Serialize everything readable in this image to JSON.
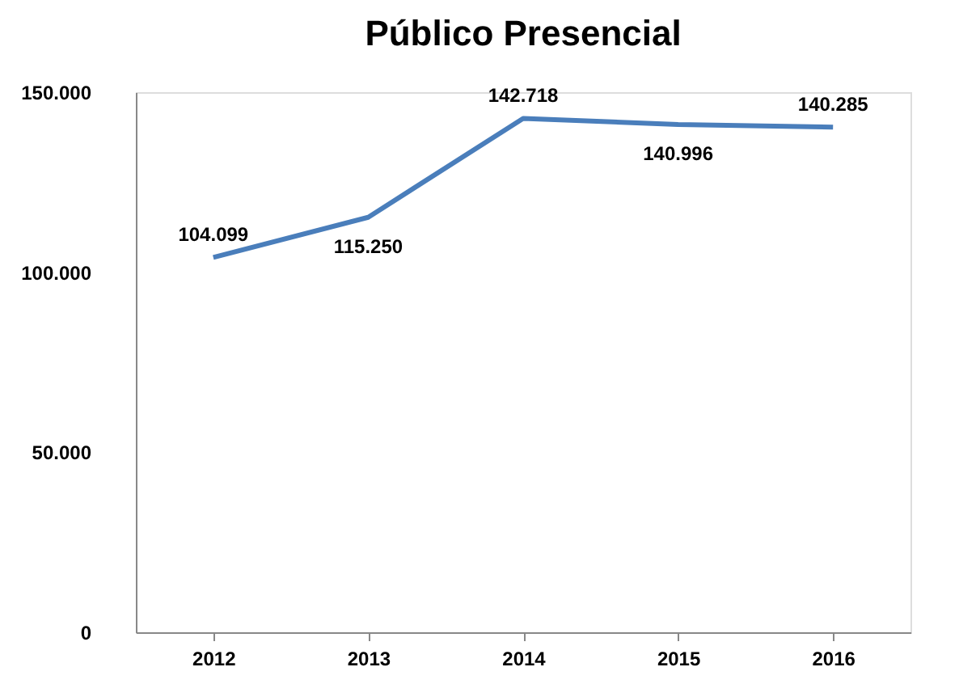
{
  "chart_data": {
    "type": "line",
    "title": "Público Presencial",
    "categories": [
      "2012",
      "2013",
      "2014",
      "2015",
      "2016"
    ],
    "series": [
      {
        "color": "#4a7ebb",
        "values": [
          104099,
          115250,
          142718,
          140996,
          140285
        ],
        "value_labels": [
          "104.099",
          "115.250",
          "142.718",
          "140.996",
          "140.285"
        ]
      }
    ],
    "ylim": [
      0,
      150000
    ],
    "yticks": [
      {
        "value": 0,
        "label": "0"
      },
      {
        "value": 50000,
        "label": "50.000"
      },
      {
        "value": 100000,
        "label": "100.000"
      },
      {
        "value": 150000,
        "label": "150.000"
      }
    ],
    "marker": "none",
    "line_style": "solid"
  }
}
